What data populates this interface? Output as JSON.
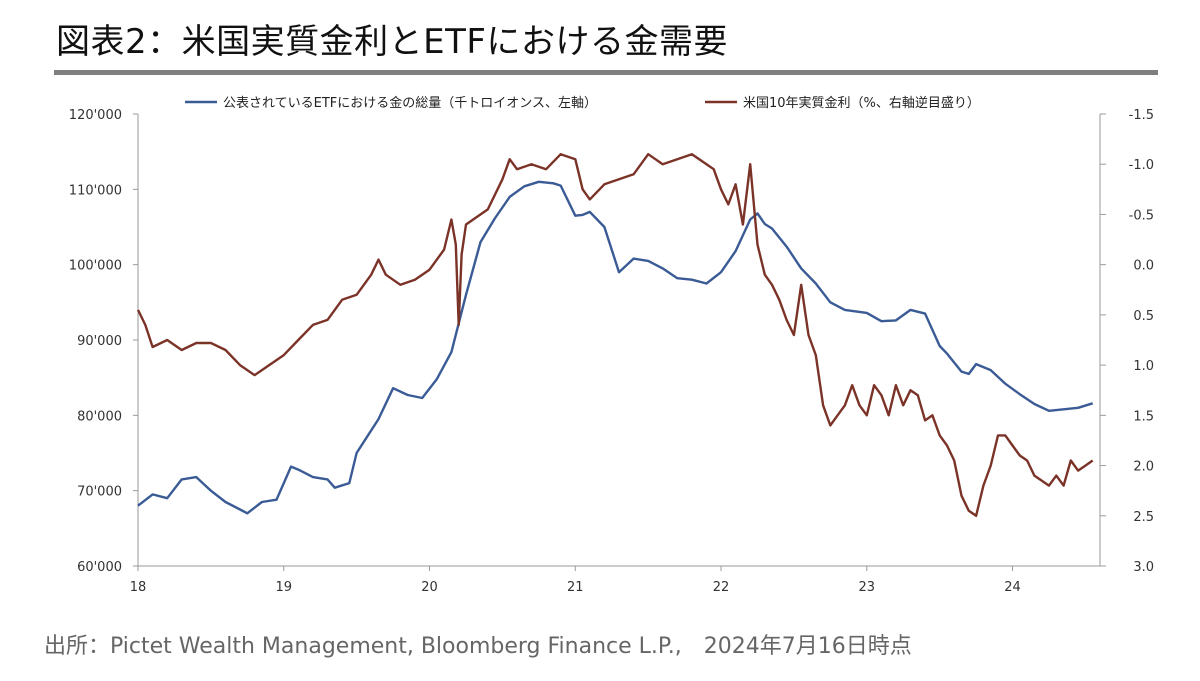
{
  "header": {
    "title": "図表2：米国実質金利とETFにおける金需要"
  },
  "footer": {
    "source": "出所：Pictet Wealth Management, Bloomberg Finance L.P.,　2024年7月16日時点"
  },
  "colors": {
    "etf": "#3a5b95",
    "rate": "#7b3328",
    "axis": "#9a9a9a",
    "rule": "#7f7f7f"
  },
  "chart_data": {
    "type": "line",
    "title": "",
    "legend_position": "top",
    "grid": false,
    "x_axis": {
      "ticks": [
        "18",
        "19",
        "20",
        "21",
        "22",
        "23",
        "24"
      ],
      "range": [
        2018.0,
        2024.6
      ]
    },
    "y_left": {
      "ticks": [
        "120'000",
        "110'000",
        "100'000",
        "90'000",
        "80'000",
        "70'000",
        "60'000"
      ],
      "range": [
        60000,
        120000
      ]
    },
    "y_right": {
      "ticks": [
        "-1.5",
        "-1.0",
        "-0.5",
        "0.0",
        "0.5",
        "1.0",
        "1.5",
        "2.0",
        "2.5",
        "3.0"
      ],
      "range": [
        -1.5,
        3.0
      ],
      "inverted": true
    },
    "series": [
      {
        "name": "公表されているETFにおける金の総量（千トロイオンス、左軸）",
        "axis": "left",
        "x": [
          2018.0,
          2018.1,
          2018.2,
          2018.3,
          2018.4,
          2018.5,
          2018.6,
          2018.7,
          2018.75,
          2018.85,
          2018.95,
          2019.0,
          2019.05,
          2019.1,
          2019.2,
          2019.3,
          2019.35,
          2019.45,
          2019.5,
          2019.55,
          2019.65,
          2019.75,
          2019.85,
          2019.95,
          2020.05,
          2020.15,
          2020.25,
          2020.35,
          2020.45,
          2020.55,
          2020.65,
          2020.75,
          2020.85,
          2020.9,
          2021.0,
          2021.05,
          2021.1,
          2021.2,
          2021.3,
          2021.4,
          2021.5,
          2021.6,
          2021.7,
          2021.8,
          2021.9,
          2022.0,
          2022.1,
          2022.2,
          2022.25,
          2022.3,
          2022.35,
          2022.45,
          2022.55,
          2022.65,
          2022.75,
          2022.85,
          2023.0,
          2023.1,
          2023.2,
          2023.3,
          2023.4,
          2023.5,
          2023.55,
          2023.65,
          2023.7,
          2023.75,
          2023.85,
          2023.95,
          2024.05,
          2024.15,
          2024.25,
          2024.35,
          2024.45,
          2024.55
        ],
        "values": [
          68000,
          69500,
          69000,
          71500,
          71800,
          70000,
          68500,
          67500,
          67000,
          68500,
          68800,
          71000,
          73200,
          72800,
          71800,
          71500,
          70400,
          71000,
          75000,
          76500,
          79500,
          83600,
          82700,
          82300,
          84800,
          88400,
          96000,
          103000,
          106200,
          109000,
          110400,
          111000,
          110800,
          110500,
          106500,
          106600,
          107000,
          105000,
          99000,
          100800,
          100500,
          99500,
          98200,
          98000,
          97500,
          99000,
          101800,
          106000,
          106800,
          105400,
          104800,
          102400,
          99500,
          97500,
          95000,
          94000,
          93600,
          92500,
          92600,
          94000,
          93500,
          89200,
          88200,
          85800,
          85500,
          86800,
          86000,
          84200,
          82800,
          81500,
          80600,
          80800,
          81000,
          81600
        ]
      },
      {
        "name": "米国10年実質金利（%、右軸逆目盛り）",
        "axis": "right",
        "x": [
          2018.0,
          2018.05,
          2018.1,
          2018.2,
          2018.3,
          2018.4,
          2018.5,
          2018.6,
          2018.7,
          2018.8,
          2018.9,
          2019.0,
          2019.1,
          2019.2,
          2019.3,
          2019.4,
          2019.5,
          2019.6,
          2019.65,
          2019.7,
          2019.8,
          2019.9,
          2020.0,
          2020.1,
          2020.15,
          2020.18,
          2020.2,
          2020.22,
          2020.25,
          2020.3,
          2020.4,
          2020.5,
          2020.55,
          2020.6,
          2020.7,
          2020.8,
          2020.9,
          2021.0,
          2021.05,
          2021.1,
          2021.2,
          2021.3,
          2021.4,
          2021.5,
          2021.55,
          2021.6,
          2021.7,
          2021.8,
          2021.85,
          2021.9,
          2021.95,
          2022.0,
          2022.05,
          2022.1,
          2022.15,
          2022.2,
          2022.25,
          2022.3,
          2022.35,
          2022.4,
          2022.45,
          2022.5,
          2022.55,
          2022.6,
          2022.65,
          2022.7,
          2022.75,
          2022.8,
          2022.85,
          2022.9,
          2022.95,
          2023.0,
          2023.05,
          2023.1,
          2023.15,
          2023.2,
          2023.25,
          2023.3,
          2023.35,
          2023.4,
          2023.45,
          2023.5,
          2023.55,
          2023.6,
          2023.65,
          2023.7,
          2023.75,
          2023.8,
          2023.85,
          2023.9,
          2023.95,
          2024.0,
          2024.05,
          2024.1,
          2024.15,
          2024.2,
          2024.25,
          2024.3,
          2024.35,
          2024.4,
          2024.45,
          2024.5,
          2024.55
        ],
        "values": [
          0.45,
          0.6,
          0.82,
          0.75,
          0.85,
          0.78,
          0.78,
          0.85,
          1.0,
          1.1,
          1.0,
          0.9,
          0.75,
          0.6,
          0.55,
          0.35,
          0.3,
          0.1,
          -0.05,
          0.1,
          0.2,
          0.15,
          0.05,
          -0.15,
          -0.45,
          -0.2,
          0.6,
          -0.1,
          -0.4,
          -0.45,
          -0.55,
          -0.85,
          -1.05,
          -0.95,
          -1.0,
          -0.95,
          -1.1,
          -1.05,
          -0.75,
          -0.65,
          -0.8,
          -0.85,
          -0.9,
          -1.1,
          -1.05,
          -1.0,
          -1.05,
          -1.1,
          -1.05,
          -1.0,
          -0.95,
          -0.75,
          -0.6,
          -0.8,
          -0.4,
          -1.0,
          -0.2,
          0.1,
          0.2,
          0.35,
          0.55,
          0.7,
          0.2,
          0.7,
          0.9,
          1.4,
          1.6,
          1.5,
          1.4,
          1.2,
          1.4,
          1.5,
          1.2,
          1.3,
          1.5,
          1.2,
          1.4,
          1.25,
          1.3,
          1.55,
          1.5,
          1.7,
          1.8,
          1.95,
          2.3,
          2.45,
          2.5,
          2.2,
          2.0,
          1.7,
          1.7,
          1.8,
          1.9,
          1.95,
          2.1,
          2.15,
          2.2,
          2.1,
          2.2,
          1.95,
          2.05,
          2.0,
          1.95
        ]
      }
    ]
  }
}
